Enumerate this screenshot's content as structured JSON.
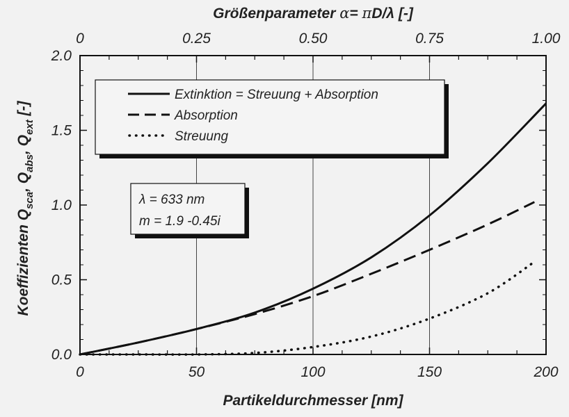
{
  "chart_data": {
    "type": "line",
    "title": "",
    "xlabel": "Partikeldurchmesser  [nm]",
    "ylabel": "Koeffizienten Q",
    "ylabel_parts": {
      "sca_sub": "sca",
      "abs_q": "Q",
      "abs_sub": "abs",
      "ext_q": "Q",
      "ext_sub": "ext",
      "unit": "[-]"
    },
    "x2label": {
      "prefix": "Größenparameter ",
      "alpha": "α",
      "eq": "= ",
      "pi": "π",
      "d_over_lambda": "D/λ",
      "unit": "  [-]"
    },
    "xlim": [
      0,
      200
    ],
    "ylim": [
      0.0,
      2.0
    ],
    "x_ticks": [
      "0",
      "50",
      "100",
      "150",
      "200"
    ],
    "y_ticks": [
      "0.0",
      "0.5",
      "1.0",
      "1.5",
      "2.0"
    ],
    "x2_ticks": [
      "0",
      "0.25",
      "0.50",
      "0.75",
      "1.00"
    ],
    "grid": "vertical at x ticks",
    "legend_placement": "upper-left",
    "series": [
      {
        "name": "Extinktion = Streuung + Absorption",
        "style": "solid",
        "x": [
          0,
          25,
          50,
          75,
          100,
          125,
          150,
          175,
          200
        ],
        "y": [
          0.0,
          0.08,
          0.17,
          0.28,
          0.44,
          0.65,
          0.93,
          1.28,
          1.68
        ]
      },
      {
        "name": "Absorption",
        "style": "dashed",
        "x": [
          0,
          25,
          50,
          75,
          100,
          125,
          150,
          175,
          195
        ],
        "y": [
          0.0,
          0.08,
          0.17,
          0.27,
          0.39,
          0.54,
          0.7,
          0.87,
          1.02
        ]
      },
      {
        "name": "Streuung",
        "style": "dotted",
        "x": [
          0,
          25,
          50,
          75,
          100,
          125,
          150,
          175,
          195
        ],
        "y": [
          0.0,
          0.0,
          0.0,
          0.01,
          0.05,
          0.12,
          0.24,
          0.41,
          0.62
        ]
      }
    ],
    "annotation": {
      "line1": "λ = 633 nm",
      "line2": "m = 1.9 -0.45i"
    },
    "colors": {
      "line": "#111111",
      "background": "#f2f2f2"
    }
  }
}
